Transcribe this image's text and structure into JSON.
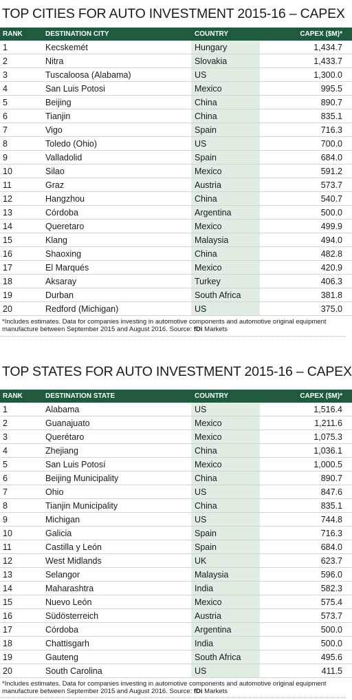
{
  "cities": {
    "title": "TOP CITIES FOR AUTO INVESTMENT 2015-16 – CAPEX",
    "headers": [
      "RANK",
      "DESTINATION CITY",
      "COUNTRY",
      "CAPEX ($M)*"
    ],
    "rows": [
      [
        "1",
        "Kecskemét",
        "Hungary",
        "1,434.7"
      ],
      [
        "2",
        "Nitra",
        "Slovakia",
        "1,433.7"
      ],
      [
        "3",
        "Tuscaloosa (Alabama)",
        "US",
        "1,300.0"
      ],
      [
        "4",
        "San Luis Potosi",
        "Mexico",
        "995.5"
      ],
      [
        "5",
        "Beijing",
        "China",
        "890.7"
      ],
      [
        "6",
        "Tianjin",
        "China",
        "835.1"
      ],
      [
        "7",
        "Vigo",
        "Spain",
        "716.3"
      ],
      [
        "8",
        "Toledo (Ohio)",
        "US",
        "700.0"
      ],
      [
        "9",
        "Valladolid",
        "Spain",
        "684.0"
      ],
      [
        "10",
        "Silao",
        "Mexico",
        "591.2"
      ],
      [
        "11",
        "Graz",
        "Austria",
        "573.7"
      ],
      [
        "12",
        "Hangzhou",
        "China",
        "540.7"
      ],
      [
        "13",
        "Córdoba",
        "Argentina",
        "500.0"
      ],
      [
        "14",
        "Queretaro",
        "Mexico",
        "499.9"
      ],
      [
        "15",
        "Klang",
        "Malaysia",
        "494.0"
      ],
      [
        "16",
        "Shaoxing",
        "China",
        "482.8"
      ],
      [
        "17",
        "El Marqués",
        "Mexico",
        "420.9"
      ],
      [
        "18",
        "Aksaray",
        "Turkey",
        "406.3"
      ],
      [
        "19",
        "Durban",
        "South Africa",
        "381.8"
      ],
      [
        "20",
        "Redford (Michigan)",
        "US",
        "375.0"
      ]
    ],
    "footnote_text": "*Includes estimates. Data for companies investing in automotive components and automotive original equipment manufacture between September 2015 and August 2016. Source: ",
    "footnote_source": "fDi",
    "footnote_suffix": " Markets"
  },
  "states": {
    "title": "TOP STATES FOR AUTO INVESTMENT 2015-16 – CAPEX",
    "headers": [
      "RANK",
      "DESTINATION STATE",
      "COUNTRY",
      "CAPEX ($M)*"
    ],
    "rows": [
      [
        "1",
        "Alabama",
        "US",
        "1,516.4"
      ],
      [
        "2",
        "Guanajuato",
        "Mexico",
        "1,211.6"
      ],
      [
        "3",
        "Querétaro",
        "Mexico",
        "1,075.3"
      ],
      [
        "4",
        "Zhejiang",
        "China",
        "1,036.1"
      ],
      [
        "5",
        "San Luis Potosí",
        "Mexico",
        "1,000.5"
      ],
      [
        "6",
        "Beijing Municipality",
        "China",
        "890.7"
      ],
      [
        "7",
        "Ohio",
        "US",
        "847.6"
      ],
      [
        "8",
        "Tianjin Municipality",
        "China",
        "835.1"
      ],
      [
        "9",
        "Michigan",
        "US",
        "744.8"
      ],
      [
        "10",
        "Galicia",
        "Spain",
        "716.3"
      ],
      [
        "11",
        "Castilla y León",
        "Spain",
        "684.0"
      ],
      [
        "12",
        "West Midlands",
        "UK",
        "623.7"
      ],
      [
        "13",
        "Selangor",
        "Malaysia",
        "596.0"
      ],
      [
        "14",
        "Maharashtra",
        "India",
        "582.3"
      ],
      [
        "15",
        "Nuevo León",
        "Mexico",
        "575.4"
      ],
      [
        "16",
        "Südösterreich",
        "Austria",
        "573.7"
      ],
      [
        "17",
        "Córdoba",
        "Argentina",
        "500.0"
      ],
      [
        "18",
        "Chattisgarh",
        "India",
        "500.0"
      ],
      [
        "19",
        "Gauteng",
        "South Africa",
        "495.6"
      ],
      [
        "20",
        "South Carolina",
        "US",
        "411.5"
      ]
    ],
    "footnote_text": "*Includes estimates. Data for companies investing in automotive components and automotive original equipment manufacture between September 2015 and August 2016. Source: ",
    "footnote_source": "fDi",
    "footnote_suffix": " Markets"
  }
}
